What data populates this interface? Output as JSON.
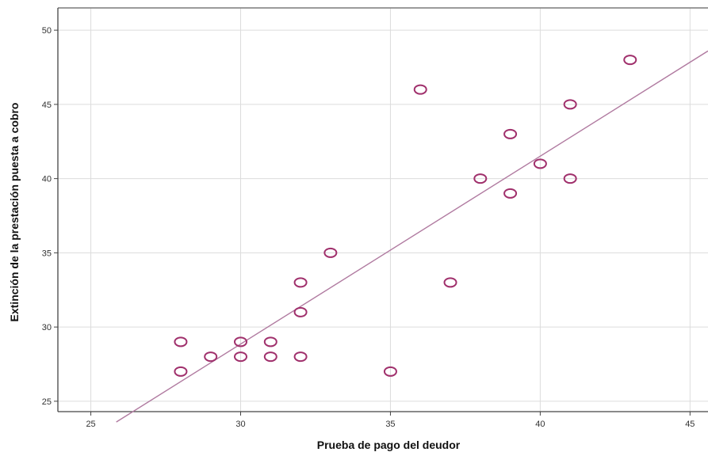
{
  "chart_data": {
    "type": "scatter",
    "xlabel": "Prueba de pago del deudor",
    "ylabel": "Extinción de la prestación puesta a cobro",
    "xlim": [
      23.9,
      45.6
    ],
    "ylim": [
      24.3,
      51.5
    ],
    "xticks": [
      25,
      30,
      35,
      40,
      45
    ],
    "yticks": [
      25,
      30,
      35,
      40,
      45,
      50
    ],
    "grid": true,
    "points": [
      {
        "x": 28,
        "y": 29
      },
      {
        "x": 28,
        "y": 27
      },
      {
        "x": 29,
        "y": 28
      },
      {
        "x": 30,
        "y": 29
      },
      {
        "x": 30,
        "y": 28
      },
      {
        "x": 31,
        "y": 29
      },
      {
        "x": 31,
        "y": 28
      },
      {
        "x": 32,
        "y": 33
      },
      {
        "x": 32,
        "y": 31
      },
      {
        "x": 32,
        "y": 28
      },
      {
        "x": 33,
        "y": 35
      },
      {
        "x": 35,
        "y": 27
      },
      {
        "x": 36,
        "y": 46
      },
      {
        "x": 37,
        "y": 33
      },
      {
        "x": 38,
        "y": 40
      },
      {
        "x": 39,
        "y": 43
      },
      {
        "x": 39,
        "y": 39
      },
      {
        "x": 40,
        "y": 41
      },
      {
        "x": 41,
        "y": 45
      },
      {
        "x": 41,
        "y": 40
      },
      {
        "x": 43,
        "y": 48
      }
    ],
    "fit_line": {
      "x": [
        25.85,
        45.6
      ],
      "y": [
        23.6,
        48.6
      ]
    },
    "colors": {
      "marker": "#a0306c",
      "line": "#b07aa0",
      "grid": "#dcdcdc",
      "frame": "#7a7a7a"
    }
  }
}
